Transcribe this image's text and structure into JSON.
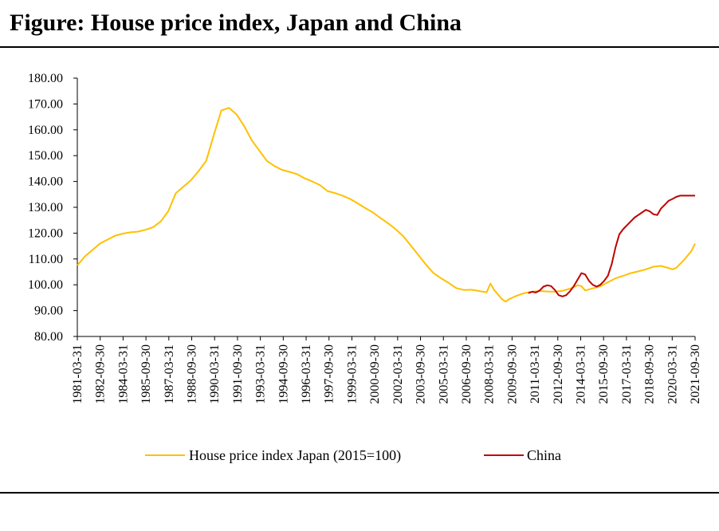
{
  "chart_data": {
    "type": "line",
    "title": "Figure: House price index, Japan and China",
    "xlabel": "",
    "ylabel": "",
    "ylim": [
      80,
      180
    ],
    "yticks": [
      "80.00",
      "90.00",
      "100.00",
      "110.00",
      "120.00",
      "130.00",
      "140.00",
      "150.00",
      "160.00",
      "170.00",
      "180.00"
    ],
    "xticks": [
      "1981-03-31",
      "1982-09-30",
      "1984-03-31",
      "1985-09-30",
      "1987-03-31",
      "1988-09-30",
      "1990-03-31",
      "1991-09-30",
      "1993-03-31",
      "1994-09-30",
      "1996-03-31",
      "1997-09-30",
      "1999-03-31",
      "2000-09-30",
      "2002-03-31",
      "2003-09-30",
      "2005-03-31",
      "2006-09-30",
      "2008-03-31",
      "2009-09-30",
      "2011-03-31",
      "2012-09-30",
      "2014-03-31",
      "2015-09-30",
      "2017-03-31",
      "2018-09-30",
      "2020-03-31",
      "2021-09-30"
    ],
    "legend_position": "bottom",
    "series": [
      {
        "name": "House price index Japan (2015=100)",
        "color": "#FFC000",
        "points": [
          [
            1981.0,
            107.5
          ],
          [
            1981.5,
            111
          ],
          [
            1982.0,
            113.5
          ],
          [
            1982.5,
            116
          ],
          [
            1983.0,
            117.5
          ],
          [
            1983.5,
            119
          ],
          [
            1984.0,
            119.8
          ],
          [
            1984.5,
            120.3
          ],
          [
            1985.0,
            120.6
          ],
          [
            1985.5,
            121.3
          ],
          [
            1986.0,
            122.3
          ],
          [
            1986.5,
            124.5
          ],
          [
            1987.0,
            128.5
          ],
          [
            1987.5,
            135.5
          ],
          [
            1988.0,
            138
          ],
          [
            1988.5,
            140.5
          ],
          [
            1989.0,
            144
          ],
          [
            1989.5,
            148
          ],
          [
            1990.0,
            158
          ],
          [
            1990.5,
            167.5
          ],
          [
            1991.0,
            168.5
          ],
          [
            1991.5,
            166
          ],
          [
            1992.0,
            161.5
          ],
          [
            1992.5,
            156
          ],
          [
            1993.0,
            152
          ],
          [
            1993.5,
            148
          ],
          [
            1994.0,
            146
          ],
          [
            1994.5,
            144.5
          ],
          [
            1995.0,
            143.7
          ],
          [
            1995.5,
            142.8
          ],
          [
            1996.0,
            141.2
          ],
          [
            1996.5,
            140
          ],
          [
            1997.0,
            138.6
          ],
          [
            1997.5,
            136.3
          ],
          [
            1998.0,
            135.5
          ],
          [
            1998.5,
            134.5
          ],
          [
            1999.0,
            133.2
          ],
          [
            1999.5,
            131.5
          ],
          [
            2000.0,
            129.7
          ],
          [
            2000.5,
            128
          ],
          [
            2001.0,
            125.8
          ],
          [
            2001.5,
            123.8
          ],
          [
            2002.0,
            121.5
          ],
          [
            2002.5,
            118.8
          ],
          [
            2003.0,
            115.2
          ],
          [
            2003.5,
            111.5
          ],
          [
            2004.0,
            107.8
          ],
          [
            2004.5,
            104.5
          ],
          [
            2005.0,
            102.5
          ],
          [
            2005.5,
            100.7
          ],
          [
            2006.0,
            98.7
          ],
          [
            2006.5,
            98
          ],
          [
            2007.0,
            98.1
          ],
          [
            2007.5,
            97.6
          ],
          [
            2008.0,
            97.1
          ],
          [
            2008.25,
            100.5
          ],
          [
            2008.5,
            98
          ],
          [
            2009.0,
            94.5
          ],
          [
            2009.25,
            93.5
          ],
          [
            2009.5,
            94.5
          ],
          [
            2010.0,
            95.8
          ],
          [
            2010.5,
            96.8
          ],
          [
            2011.0,
            97.3
          ],
          [
            2011.5,
            97.6
          ],
          [
            2012.0,
            97.4
          ],
          [
            2012.5,
            97.3
          ],
          [
            2013.0,
            97.7
          ],
          [
            2013.5,
            98.5
          ],
          [
            2014.0,
            99.8
          ],
          [
            2014.25,
            99.5
          ],
          [
            2014.5,
            97.8
          ],
          [
            2015.0,
            98.6
          ],
          [
            2015.5,
            99.4
          ],
          [
            2016.0,
            101
          ],
          [
            2016.5,
            102.5
          ],
          [
            2017.0,
            103.5
          ],
          [
            2017.5,
            104.5
          ],
          [
            2018.0,
            105.2
          ],
          [
            2018.5,
            106
          ],
          [
            2019.0,
            107
          ],
          [
            2019.5,
            107.3
          ],
          [
            2020.0,
            106.5
          ],
          [
            2020.25,
            106
          ],
          [
            2020.5,
            106.5
          ],
          [
            2021.0,
            109.5
          ],
          [
            2021.5,
            113
          ],
          [
            2021.75,
            116
          ]
        ]
      },
      {
        "name": "China",
        "color": "#C00000",
        "points": [
          [
            2010.75,
            96.8
          ],
          [
            2011.0,
            97.3
          ],
          [
            2011.25,
            97
          ],
          [
            2011.5,
            97.8
          ],
          [
            2011.75,
            99.3
          ],
          [
            2012.0,
            99.8
          ],
          [
            2012.25,
            99.5
          ],
          [
            2012.5,
            98
          ],
          [
            2012.75,
            96
          ],
          [
            2013.0,
            95.5
          ],
          [
            2013.25,
            96
          ],
          [
            2013.5,
            97.5
          ],
          [
            2013.75,
            99.5
          ],
          [
            2014.0,
            102
          ],
          [
            2014.25,
            104.5
          ],
          [
            2014.5,
            104
          ],
          [
            2014.75,
            101.5
          ],
          [
            2015.0,
            100
          ],
          [
            2015.25,
            99.3
          ],
          [
            2015.5,
            100
          ],
          [
            2015.75,
            101.5
          ],
          [
            2016.0,
            103.5
          ],
          [
            2016.25,
            108
          ],
          [
            2016.5,
            114.5
          ],
          [
            2016.75,
            119.5
          ],
          [
            2017.0,
            121.5
          ],
          [
            2017.25,
            123
          ],
          [
            2017.5,
            124.5
          ],
          [
            2017.75,
            126
          ],
          [
            2018.0,
            127
          ],
          [
            2018.25,
            128
          ],
          [
            2018.5,
            129
          ],
          [
            2018.75,
            128.5
          ],
          [
            2019.0,
            127.3
          ],
          [
            2019.25,
            127
          ],
          [
            2019.5,
            129.5
          ],
          [
            2019.75,
            131
          ],
          [
            2020.0,
            132.5
          ],
          [
            2020.25,
            133.2
          ],
          [
            2020.5,
            134
          ],
          [
            2020.75,
            134.5
          ],
          [
            2021.75,
            134.5
          ]
        ]
      }
    ]
  }
}
